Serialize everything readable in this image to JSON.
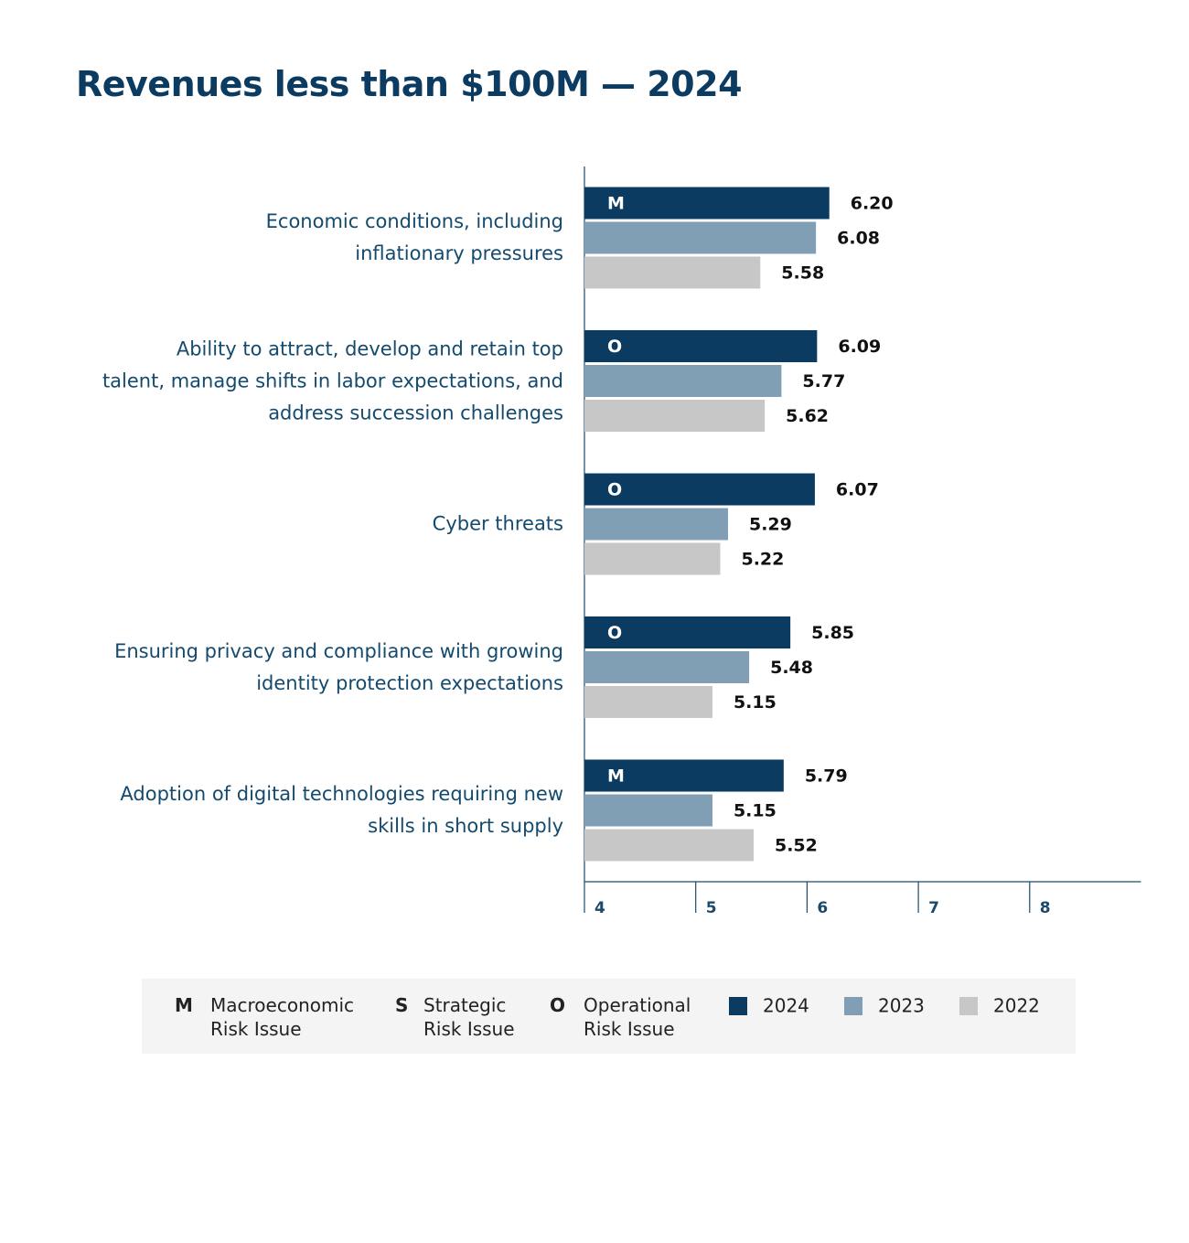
{
  "chart_data": {
    "type": "hbar",
    "title": "Revenues less than $100M — 2024",
    "categories": [
      "Economic conditions, including\ninflationary pressures",
      "Ability to attract, develop and retain top\ntalent, manage shifts in labor expectations, and\naddress succession challenges",
      "Cyber threats",
      "Ensuring privacy and compliance with growing\nidentity protection expectations",
      "Adoption of digital technologies requiring new\nskills in short supply"
    ],
    "risk_types": [
      "M",
      "O",
      "O",
      "O",
      "M"
    ],
    "series": [
      {
        "name": "2024",
        "color": "#0b3b60",
        "values": [
          6.2,
          6.09,
          6.07,
          5.85,
          5.79
        ],
        "value_labels": [
          "6.20",
          "6.09",
          "6.07",
          "5.85",
          "5.79"
        ]
      },
      {
        "name": "2023",
        "color": "#819fb4",
        "values": [
          6.08,
          5.77,
          5.29,
          5.48,
          5.15
        ],
        "value_labels": [
          "6.08",
          "5.77",
          "5.29",
          "5.48",
          "5.15"
        ]
      },
      {
        "name": "2022",
        "color": "#c7c7c7",
        "values": [
          5.58,
          5.62,
          5.22,
          5.15,
          5.52
        ],
        "value_labels": [
          "5.58",
          "5.62",
          "5.22",
          "5.15",
          "5.52"
        ]
      }
    ],
    "risk_legend": [
      {
        "code": "M",
        "label": "Macroeconomic\nRisk Issue"
      },
      {
        "code": "S",
        "label": "Strategic\nRisk Issue"
      },
      {
        "code": "O",
        "label": "Operational\nRisk Issue"
      }
    ],
    "xlim": [
      4,
      9
    ],
    "xticks": [
      4,
      5,
      6,
      7,
      8
    ]
  }
}
